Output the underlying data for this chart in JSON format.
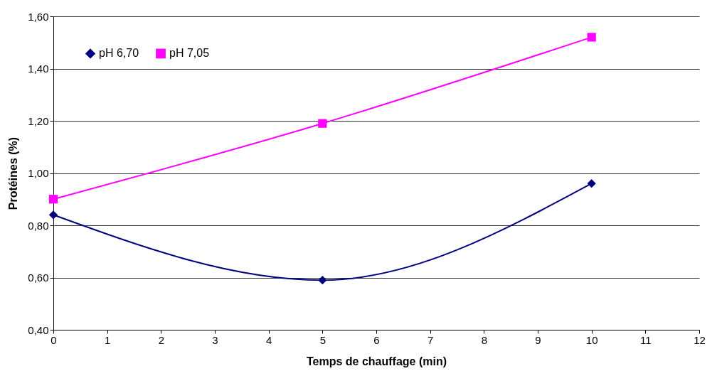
{
  "chart_data": {
    "type": "line",
    "xlabel": "Temps de chauffage (min)",
    "ylabel": "Protéines (%)",
    "series": [
      {
        "name": "pH 6,70",
        "color": "#000080",
        "marker": "diamond",
        "x": [
          0,
          5,
          10
        ],
        "values": [
          0.84,
          0.59,
          0.96
        ]
      },
      {
        "name": "pH 7,05",
        "color": "#ff00ff",
        "marker": "square",
        "x": [
          0,
          5,
          10
        ],
        "values": [
          0.9,
          1.19,
          1.52
        ]
      }
    ],
    "xlim": [
      0,
      12
    ],
    "xticks": [
      0,
      1,
      2,
      3,
      4,
      5,
      6,
      7,
      8,
      9,
      10,
      11,
      12
    ],
    "ylim": [
      0.4,
      1.6
    ],
    "yticks": [
      {
        "value": 0.4,
        "label": "0,40"
      },
      {
        "value": 0.6,
        "label": "0,60"
      },
      {
        "value": 0.8,
        "label": "0,80"
      },
      {
        "value": 1.0,
        "label": "1,00"
      },
      {
        "value": 1.2,
        "label": "1,20"
      },
      {
        "value": 1.4,
        "label": "1,40"
      },
      {
        "value": 1.6,
        "label": "1,60"
      }
    ],
    "grid": "y",
    "legend": "top left",
    "line_style": "solid"
  }
}
